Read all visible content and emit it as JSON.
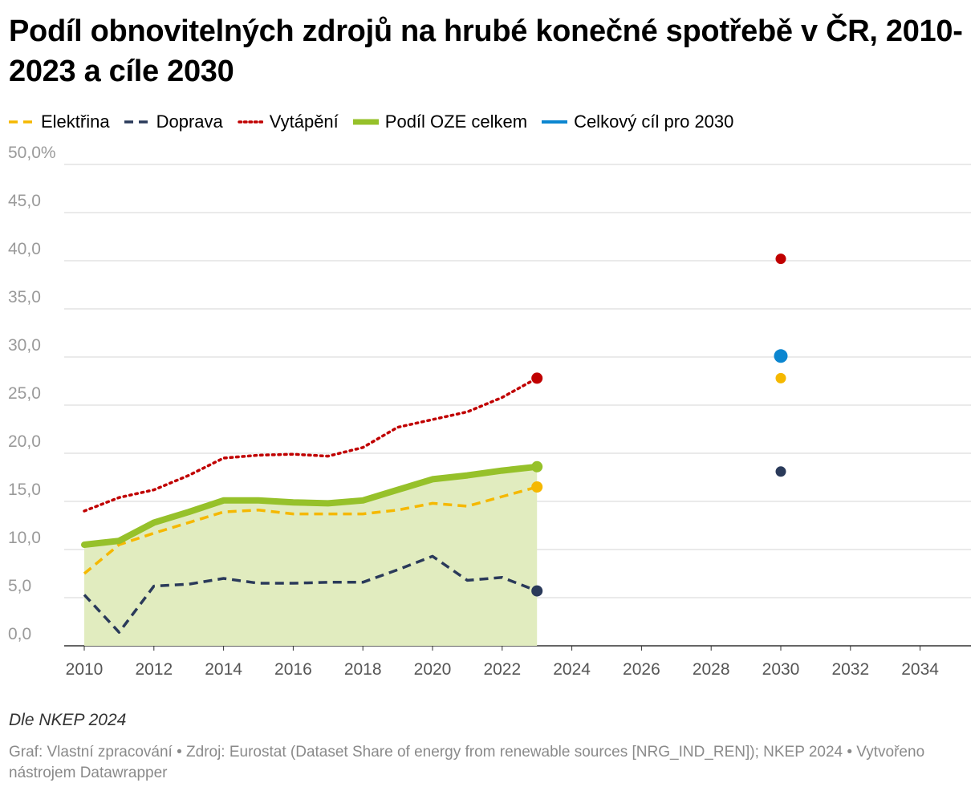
{
  "chart_data": {
    "type": "line",
    "title": "Podíl obnovitelných zdrojů na hrubé konečné spotřebě v ČR, 2010-2023 a cíle 2030",
    "ylim": [
      0,
      50
    ],
    "xlim": [
      2010,
      2035.5
    ],
    "y_ticks": [
      0,
      5,
      10,
      15,
      20,
      25,
      30,
      35,
      40,
      45,
      50
    ],
    "y_tick_labels": [
      "0,0",
      "5,0",
      "10,0",
      "15,0",
      "20,0",
      "25,0",
      "30,0",
      "35,0",
      "40,0",
      "45,0",
      "50,0%"
    ],
    "x_ticks": [
      2010,
      2012,
      2014,
      2016,
      2018,
      2020,
      2022,
      2024,
      2026,
      2028,
      2030,
      2032,
      2034
    ],
    "x_tick_labels": [
      "2010",
      "2012",
      "2014",
      "2016",
      "2018",
      "2020",
      "2022",
      "2024",
      "2026",
      "2028",
      "2030",
      "2032",
      "2034"
    ],
    "x": [
      2010,
      2011,
      2012,
      2013,
      2014,
      2015,
      2016,
      2017,
      2018,
      2019,
      2020,
      2021,
      2022,
      2023
    ],
    "series": [
      {
        "name": "Elektřina",
        "color": "#f5b800",
        "style": "dashed",
        "values": [
          7.5,
          10.5,
          11.7,
          12.8,
          13.9,
          14.1,
          13.7,
          13.7,
          13.7,
          14.1,
          14.8,
          14.5,
          15.5,
          16.5
        ],
        "target_2030": 27.8
      },
      {
        "name": "Doprava",
        "color": "#2a3a5a",
        "style": "dashed",
        "values": [
          5.3,
          1.4,
          6.2,
          6.4,
          7.0,
          6.5,
          6.5,
          6.6,
          6.6,
          7.9,
          9.3,
          6.8,
          7.1,
          5.7
        ],
        "target_2030": 18.1
      },
      {
        "name": "Vytápění",
        "color": "#c00000",
        "style": "dotted",
        "values": [
          14.0,
          15.4,
          16.2,
          17.7,
          19.5,
          19.8,
          19.9,
          19.7,
          20.6,
          22.7,
          23.5,
          24.3,
          25.8,
          27.8
        ],
        "target_2030": 40.2
      },
      {
        "name": "Podíl OZE celkem",
        "color": "#96c12a",
        "style": "solid-thick",
        "values": [
          10.5,
          10.9,
          12.8,
          13.9,
          15.1,
          15.1,
          14.9,
          14.8,
          15.1,
          16.2,
          17.3,
          17.7,
          18.2,
          18.6
        ]
      },
      {
        "name": "Celkový cíl pro 2030",
        "color": "#0b86d0",
        "style": "point",
        "target_2030": 30.1
      }
    ],
    "area_fill_color": "#e1ecbf"
  },
  "note": "Dle NKEP 2024",
  "source_text": "Graf: Vlastní zpracování • Zdroj: Eurostat (Dataset Share of energy from renewable sources [NRG_IND_REN]); NKEP 2024 • Vytvořeno nástrojem Datawrapper"
}
